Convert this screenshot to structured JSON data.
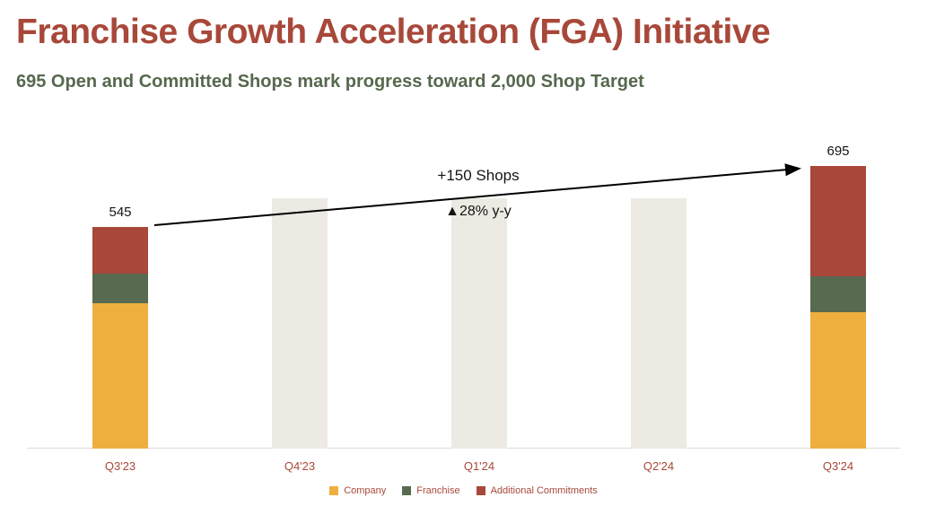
{
  "header": {
    "title": "Franchise Growth Acceleration (FGA) Initiative",
    "subtitle": "695 Open and Committed Shops mark progress toward 2,000 Shop Target"
  },
  "annotation": {
    "line1": "+150 Shops",
    "line2": "▲28% y-y"
  },
  "colors": {
    "title_red": "#A8483A",
    "subtitle_green": "#56684E",
    "company_yellow": "#EFAF3F",
    "franchise_green": "#586A50",
    "additional_red": "#A8483A",
    "placeholder_gray": "#ECEAE2",
    "axis_label_red": "#A8483A",
    "arrow_black": "#000000"
  },
  "chart_data": {
    "type": "bar",
    "stacked": true,
    "title": "Open and Committed Shops by Quarter",
    "categories": [
      "Q3'23",
      "Q4'23",
      "Q1'24",
      "Q2'24",
      "Q3'24"
    ],
    "series": [
      {
        "name": "Company",
        "color": "#EFAF3F",
        "values": [
          357,
          null,
          null,
          null,
          335
        ]
      },
      {
        "name": "Franchise",
        "color": "#586A50",
        "values": [
          73,
          null,
          null,
          null,
          88
        ]
      },
      {
        "name": "Additional Commitments",
        "color": "#A8483A",
        "values": [
          115,
          null,
          null,
          null,
          272
        ]
      }
    ],
    "totals": [
      545,
      null,
      null,
      null,
      695
    ],
    "placeholder_bars": {
      "categories": [
        "Q4'23",
        "Q1'24",
        "Q2'24"
      ],
      "value": 615,
      "color": "#ECEAE2"
    },
    "annotations": [
      "+150 Shops",
      "▲28% y-y"
    ],
    "xlabel": "",
    "ylabel": "",
    "ylim": [
      0,
      760
    ],
    "grid": false,
    "legend_position": "bottom"
  }
}
